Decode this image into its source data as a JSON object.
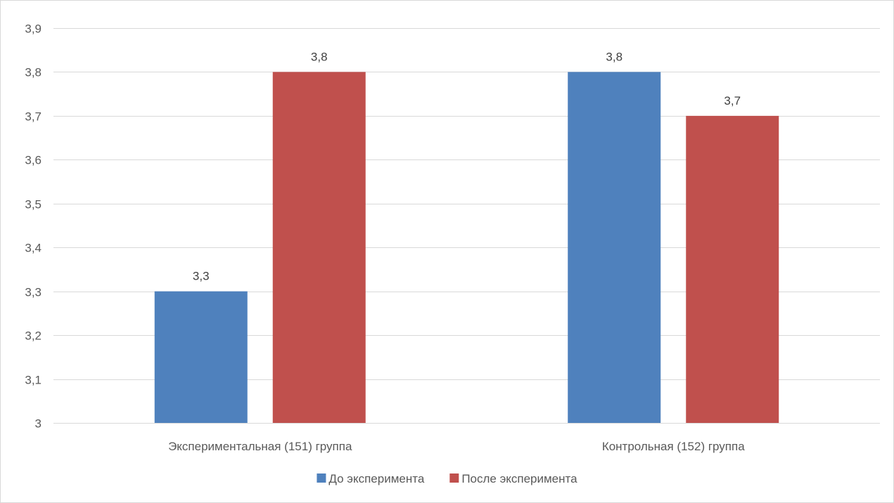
{
  "chart_data": {
    "type": "bar",
    "categories": [
      "Экспериментальная (151) группа",
      "Контрольная (152) группа"
    ],
    "series": [
      {
        "name": "До эксперимента",
        "values": [
          3.3,
          3.8
        ],
        "color": "#4f81bd"
      },
      {
        "name": "После эксперимента",
        "values": [
          3.8,
          3.7
        ],
        "color": "#c0504d"
      }
    ],
    "data_labels": [
      [
        "3,3",
        "3,8"
      ],
      [
        "3,8",
        "3,7"
      ]
    ],
    "yticks": [
      "3",
      "3,1",
      "3,2",
      "3,3",
      "3,4",
      "3,5",
      "3,6",
      "3,7",
      "3,8",
      "3,9"
    ],
    "ylim": [
      3,
      3.9
    ],
    "grid": true,
    "legend_position": "bottom"
  }
}
